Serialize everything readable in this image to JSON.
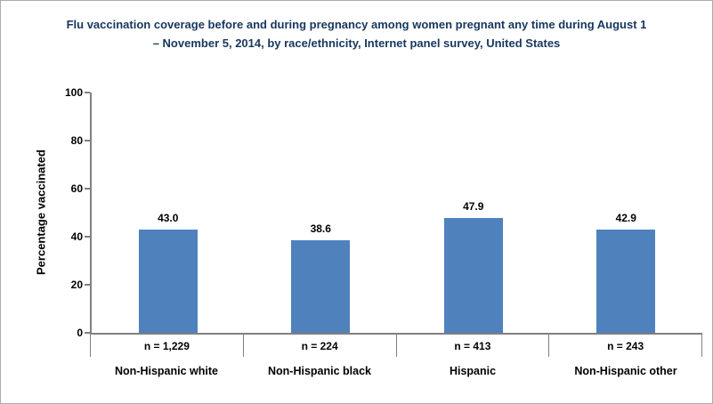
{
  "title": "Flu vaccination coverage before and during pregnancy among women pregnant any time during August 1\n– November 5, 2014, by race/ethnicity, Internet panel survey, United States",
  "colors": {
    "title": "#17375E",
    "bar": "#4F81BD",
    "axis": "#808080",
    "text": "#000000"
  },
  "chart_data": {
    "type": "bar",
    "title": "Flu vaccination coverage before and during pregnancy among women pregnant any time during August 1 – November 5, 2014, by race/ethnicity, Internet panel survey, United States",
    "categories": [
      "Non-Hispanic white",
      "Non-Hispanic black",
      "Hispanic",
      "Non-Hispanic other"
    ],
    "values": [
      43.0,
      38.6,
      47.9,
      42.9
    ],
    "value_labels": [
      "43.0",
      "38.6",
      "47.9",
      "42.9"
    ],
    "n_labels": [
      "n = 1,229",
      "n = 224",
      "n = 413",
      "n = 243"
    ],
    "xlabel": "",
    "ylabel": "Percentage vaccinated",
    "ylim": [
      0,
      100
    ],
    "yticks": [
      0,
      20,
      40,
      60,
      80,
      100
    ],
    "grid": false,
    "legend_position": "none",
    "bar_color": "#4F81BD"
  }
}
